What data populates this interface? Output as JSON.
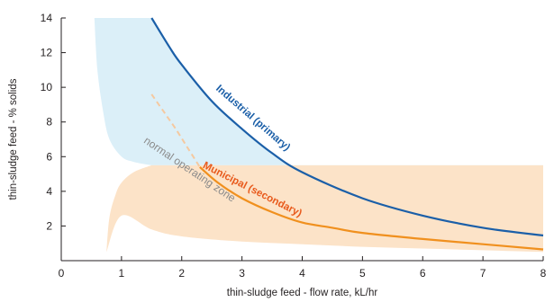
{
  "chart_data": {
    "type": "area",
    "title": "",
    "xlabel": "thin-sludge feed - flow rate, kL/hr",
    "ylabel": "thin-sludge feed - % solids",
    "xlim": [
      0,
      8
    ],
    "ylim": [
      0,
      14
    ],
    "x_ticks": [
      0,
      1,
      2,
      3,
      4,
      5,
      6,
      7,
      8
    ],
    "y_ticks": [
      2,
      4,
      6,
      8,
      10,
      12,
      14
    ],
    "grid": false,
    "legend": "none",
    "series": [
      {
        "name": "Industrial (primary)",
        "kind": "line",
        "color": "#1b5fa8",
        "x": [
          1.5,
          1.8,
          2.0,
          2.5,
          3.0,
          3.5,
          4.0,
          5.0,
          6.0,
          7.0,
          8.0
        ],
        "y": [
          14.0,
          12.3,
          11.3,
          9.2,
          7.6,
          6.2,
          5.1,
          3.6,
          2.6,
          1.9,
          1.45
        ]
      },
      {
        "name": "Municipal (secondary)",
        "kind": "line",
        "color": "#f0901e",
        "x": [
          2.3,
          2.6,
          3.0,
          3.5,
          4.0,
          4.5,
          5.0,
          6.0,
          7.0,
          8.0
        ],
        "y": [
          5.4,
          4.5,
          3.6,
          2.8,
          2.2,
          1.9,
          1.6,
          1.25,
          0.95,
          0.65
        ]
      },
      {
        "name": "",
        "kind": "dashed-extension",
        "color": "#f5c9a0",
        "x": [
          1.5,
          1.7,
          1.9,
          2.1,
          2.3
        ],
        "y": [
          9.6,
          8.6,
          7.6,
          6.5,
          5.4
        ]
      }
    ],
    "regions": [
      {
        "name": "industrial-zone",
        "color": "#dbeff8",
        "upper_x": [
          0.55,
          0.6,
          0.7,
          0.8,
          1.0,
          1.2,
          1.5
        ],
        "upper_y": [
          14.0,
          11.0,
          8.5,
          7.0,
          6.0,
          5.7,
          5.5
        ]
      },
      {
        "name": "operating-zone",
        "color": "#fce3c8",
        "top_y": 5.5,
        "left_x": [
          0.75,
          0.8,
          0.9,
          1.0,
          1.2,
          1.5
        ],
        "left_y": [
          0.5,
          2.5,
          3.8,
          4.5,
          5.1,
          5.5
        ],
        "bottom_x": [
          0.75,
          1.0,
          1.5,
          2.0,
          3.0,
          4.0,
          5.0,
          6.0,
          7.0,
          8.0
        ],
        "bottom_y": [
          0.5,
          2.6,
          1.8,
          1.4,
          1.1,
          0.95,
          0.8,
          0.7,
          0.6,
          0.5
        ]
      }
    ],
    "annotations": [
      {
        "text": "Industrial (primary)",
        "color": "#1b5fa8",
        "x": 3.15,
        "y": 8.1,
        "angle": 41
      },
      {
        "text": "Municipal (secondary)",
        "color": "#e85a1c",
        "x": 3.15,
        "y": 3.95,
        "angle": 27
      },
      {
        "text": "normal operating zone",
        "color": "#8a8a8a",
        "x": 2.1,
        "y": 5.1,
        "angle": 34
      }
    ]
  }
}
